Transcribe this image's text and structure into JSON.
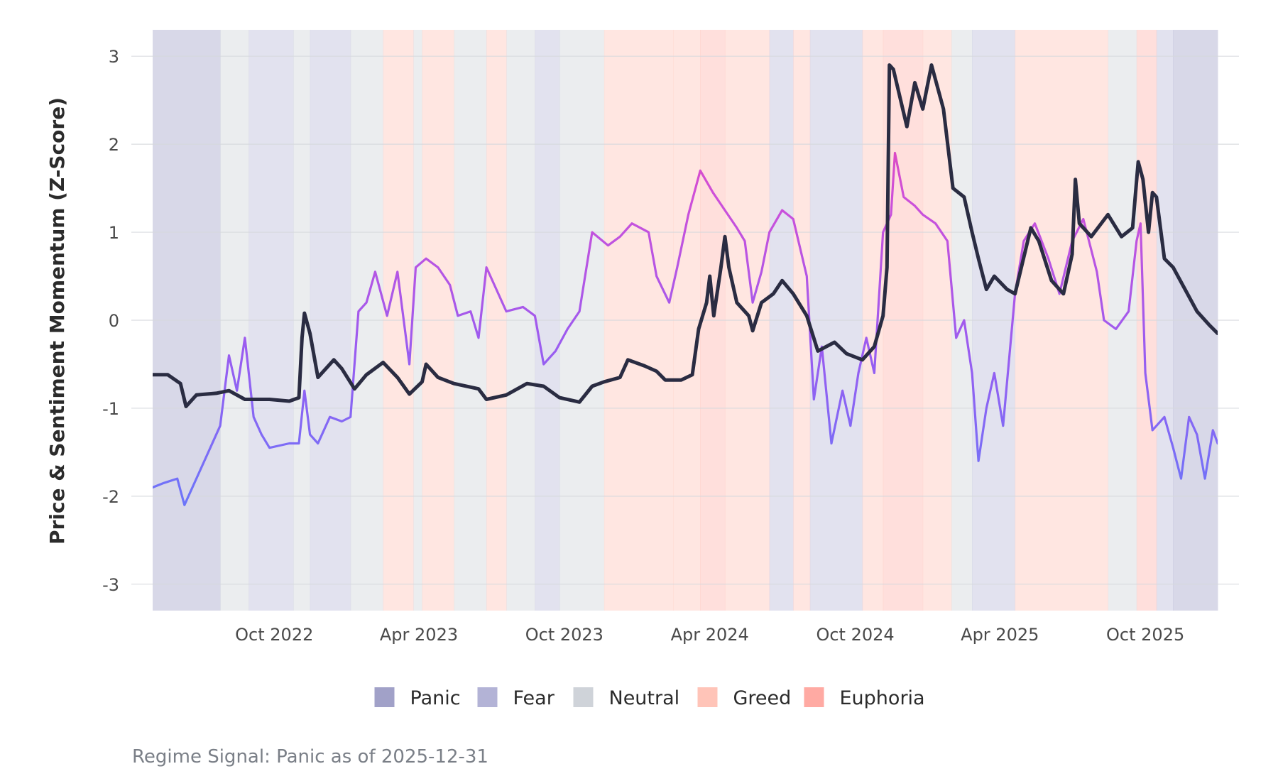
{
  "chart_data": {
    "type": "line",
    "title": "",
    "ylabel": "Price & Sentiment Momentum (Z-Score)",
    "xlabel": "",
    "ylim": [
      -3.3,
      3.3
    ],
    "xlim": [
      "2022-05-01",
      "2025-12-31"
    ],
    "y_ticks": [
      3,
      2,
      1,
      0,
      -1,
      -2,
      -3
    ],
    "y_tick_labels": [
      "3",
      "2",
      "1",
      "0",
      "-1",
      "-2",
      "-3"
    ],
    "x_ticks": [
      "2022-10-01",
      "2023-04-01",
      "2023-10-01",
      "2024-04-01",
      "2024-10-01",
      "2025-04-01",
      "2025-10-01"
    ],
    "x_tick_labels": [
      "Oct 2022",
      "Apr 2023",
      "Oct 2023",
      "Apr 2024",
      "Oct 2024",
      "Apr 2025",
      "Oct 2025"
    ],
    "grid": true,
    "legend_position": "bottom",
    "legend": [
      {
        "label": "Panic",
        "color": "#a1a1c8"
      },
      {
        "label": "Fear",
        "color": "#b3b3d6"
      },
      {
        "label": "Neutral",
        "color": "#cfd3d9"
      },
      {
        "label": "Greed",
        "color": "#ffc4b8"
      },
      {
        "label": "Euphoria",
        "color": "#ffaaa3"
      }
    ],
    "regimes": [
      {
        "start": "2022-05-01",
        "end": "2022-07-25",
        "regime": "Panic"
      },
      {
        "start": "2022-07-25",
        "end": "2022-08-30",
        "regime": "Neutral"
      },
      {
        "start": "2022-08-30",
        "end": "2022-10-25",
        "regime": "Fear"
      },
      {
        "start": "2022-10-25",
        "end": "2022-11-15",
        "regime": "Neutral"
      },
      {
        "start": "2022-11-15",
        "end": "2023-01-05",
        "regime": "Fear"
      },
      {
        "start": "2023-01-05",
        "end": "2023-02-15",
        "regime": "Neutral"
      },
      {
        "start": "2023-02-15",
        "end": "2023-03-25",
        "regime": "Greed"
      },
      {
        "start": "2023-03-25",
        "end": "2023-04-05",
        "regime": "Neutral"
      },
      {
        "start": "2023-04-05",
        "end": "2023-05-15",
        "regime": "Greed"
      },
      {
        "start": "2023-05-15",
        "end": "2023-06-25",
        "regime": "Neutral"
      },
      {
        "start": "2023-06-25",
        "end": "2023-07-20",
        "regime": "Greed"
      },
      {
        "start": "2023-07-20",
        "end": "2023-08-25",
        "regime": "Neutral"
      },
      {
        "start": "2023-08-25",
        "end": "2023-09-25",
        "regime": "Fear"
      },
      {
        "start": "2023-09-25",
        "end": "2023-11-20",
        "regime": "Neutral"
      },
      {
        "start": "2023-11-20",
        "end": "2024-02-15",
        "regime": "Greed"
      },
      {
        "start": "2024-02-15",
        "end": "2024-03-20",
        "regime": "Greed"
      },
      {
        "start": "2024-03-20",
        "end": "2024-04-20",
        "regime": "Euphoria"
      },
      {
        "start": "2024-04-20",
        "end": "2024-06-15",
        "regime": "Greed"
      },
      {
        "start": "2024-06-15",
        "end": "2024-07-15",
        "regime": "Fear"
      },
      {
        "start": "2024-07-15",
        "end": "2024-08-05",
        "regime": "Greed"
      },
      {
        "start": "2024-08-05",
        "end": "2024-10-10",
        "regime": "Fear"
      },
      {
        "start": "2024-10-10",
        "end": "2024-11-05",
        "regime": "Greed"
      },
      {
        "start": "2024-11-05",
        "end": "2024-12-25",
        "regime": "Euphoria"
      },
      {
        "start": "2024-12-25",
        "end": "2025-01-30",
        "regime": "Greed"
      },
      {
        "start": "2025-01-30",
        "end": "2025-02-25",
        "regime": "Neutral"
      },
      {
        "start": "2025-02-25",
        "end": "2025-04-20",
        "regime": "Fear"
      },
      {
        "start": "2025-04-20",
        "end": "2025-08-15",
        "regime": "Greed"
      },
      {
        "start": "2025-08-15",
        "end": "2025-09-20",
        "regime": "Neutral"
      },
      {
        "start": "2025-09-20",
        "end": "2025-10-15",
        "regime": "Euphoria"
      },
      {
        "start": "2025-10-15",
        "end": "2025-11-05",
        "regime": "Fear"
      },
      {
        "start": "2025-11-05",
        "end": "2025-12-31",
        "regime": "Panic"
      }
    ],
    "series": [
      {
        "color": "#2a2c42",
        "points": [
          [
            "2022-05-01",
            -0.62
          ],
          [
            "2022-05-20",
            -0.62
          ],
          [
            "2022-06-05",
            -0.72
          ],
          [
            "2022-06-12",
            -0.98
          ],
          [
            "2022-06-25",
            -0.85
          ],
          [
            "2022-07-20",
            -0.83
          ],
          [
            "2022-08-05",
            -0.8
          ],
          [
            "2022-08-25",
            -0.9
          ],
          [
            "2022-09-25",
            -0.9
          ],
          [
            "2022-10-20",
            -0.92
          ],
          [
            "2022-11-01",
            -0.88
          ],
          [
            "2022-11-05",
            -0.2
          ],
          [
            "2022-11-08",
            0.08
          ],
          [
            "2022-11-15",
            -0.15
          ],
          [
            "2022-11-25",
            -0.65
          ],
          [
            "2022-12-15",
            -0.45
          ],
          [
            "2022-12-25",
            -0.55
          ],
          [
            "2023-01-10",
            -0.78
          ],
          [
            "2023-01-25",
            -0.62
          ],
          [
            "2023-02-15",
            -0.48
          ],
          [
            "2023-03-05",
            -0.65
          ],
          [
            "2023-03-20",
            -0.84
          ],
          [
            "2023-04-05",
            -0.7
          ],
          [
            "2023-04-10",
            -0.5
          ],
          [
            "2023-04-25",
            -0.65
          ],
          [
            "2023-05-15",
            -0.72
          ],
          [
            "2023-06-15",
            -0.78
          ],
          [
            "2023-06-25",
            -0.9
          ],
          [
            "2023-07-20",
            -0.85
          ],
          [
            "2023-08-15",
            -0.72
          ],
          [
            "2023-09-05",
            -0.75
          ],
          [
            "2023-09-25",
            -0.88
          ],
          [
            "2023-10-20",
            -0.93
          ],
          [
            "2023-11-05",
            -0.75
          ],
          [
            "2023-11-20",
            -0.7
          ],
          [
            "2023-12-10",
            -0.65
          ],
          [
            "2023-12-20",
            -0.45
          ],
          [
            "2024-01-10",
            -0.52
          ],
          [
            "2024-01-25",
            -0.58
          ],
          [
            "2024-02-05",
            -0.68
          ],
          [
            "2024-02-25",
            -0.68
          ],
          [
            "2024-03-10",
            -0.62
          ],
          [
            "2024-03-18",
            -0.1
          ],
          [
            "2024-03-28",
            0.2
          ],
          [
            "2024-04-01",
            0.5
          ],
          [
            "2024-04-06",
            0.05
          ],
          [
            "2024-04-15",
            0.6
          ],
          [
            "2024-04-20",
            0.95
          ],
          [
            "2024-04-25",
            0.6
          ],
          [
            "2024-05-05",
            0.2
          ],
          [
            "2024-05-20",
            0.05
          ],
          [
            "2024-05-25",
            -0.12
          ],
          [
            "2024-06-05",
            0.2
          ],
          [
            "2024-06-20",
            0.3
          ],
          [
            "2024-07-01",
            0.45
          ],
          [
            "2024-07-15",
            0.3
          ],
          [
            "2024-08-01",
            0.05
          ],
          [
            "2024-08-15",
            -0.35
          ],
          [
            "2024-09-05",
            -0.25
          ],
          [
            "2024-09-20",
            -0.38
          ],
          [
            "2024-10-10",
            -0.45
          ],
          [
            "2024-10-25",
            -0.3
          ],
          [
            "2024-11-05",
            0.05
          ],
          [
            "2024-11-10",
            0.6
          ],
          [
            "2024-11-13",
            2.9
          ],
          [
            "2024-11-18",
            2.85
          ],
          [
            "2024-12-05",
            2.2
          ],
          [
            "2024-12-15",
            2.7
          ],
          [
            "2024-12-25",
            2.4
          ],
          [
            "2025-01-05",
            2.9
          ],
          [
            "2025-01-20",
            2.4
          ],
          [
            "2025-02-01",
            1.5
          ],
          [
            "2025-02-15",
            1.4
          ],
          [
            "2025-02-25",
            1.0
          ],
          [
            "2025-03-05",
            0.7
          ],
          [
            "2025-03-15",
            0.35
          ],
          [
            "2025-03-25",
            0.5
          ],
          [
            "2025-04-10",
            0.35
          ],
          [
            "2025-04-20",
            0.3
          ],
          [
            "2025-05-10",
            1.05
          ],
          [
            "2025-05-20",
            0.9
          ],
          [
            "2025-06-05",
            0.45
          ],
          [
            "2025-06-20",
            0.3
          ],
          [
            "2025-07-01",
            0.75
          ],
          [
            "2025-07-05",
            1.6
          ],
          [
            "2025-07-10",
            1.1
          ],
          [
            "2025-07-25",
            0.95
          ],
          [
            "2025-08-15",
            1.2
          ],
          [
            "2025-09-01",
            0.95
          ],
          [
            "2025-09-15",
            1.05
          ],
          [
            "2025-09-22",
            1.8
          ],
          [
            "2025-09-28",
            1.6
          ],
          [
            "2025-10-05",
            1.0
          ],
          [
            "2025-10-10",
            1.45
          ],
          [
            "2025-10-15",
            1.4
          ],
          [
            "2025-10-25",
            0.7
          ],
          [
            "2025-11-05",
            0.6
          ],
          [
            "2025-11-20",
            0.35
          ],
          [
            "2025-12-05",
            0.1
          ],
          [
            "2025-12-20",
            -0.05
          ],
          [
            "2025-12-31",
            -0.15
          ]
        ]
      },
      {
        "gradient": true,
        "points": [
          [
            "2022-05-01",
            -1.9
          ],
          [
            "2022-05-15",
            -1.85
          ],
          [
            "2022-06-01",
            -1.8
          ],
          [
            "2022-06-10",
            -2.1
          ],
          [
            "2022-06-25",
            -1.8
          ],
          [
            "2022-07-10",
            -1.5
          ],
          [
            "2022-07-25",
            -1.2
          ],
          [
            "2022-08-05",
            -0.4
          ],
          [
            "2022-08-15",
            -0.8
          ],
          [
            "2022-08-25",
            -0.2
          ],
          [
            "2022-09-05",
            -1.1
          ],
          [
            "2022-09-15",
            -1.3
          ],
          [
            "2022-09-25",
            -1.45
          ],
          [
            "2022-10-20",
            -1.4
          ],
          [
            "2022-11-01",
            -1.4
          ],
          [
            "2022-11-08",
            -0.8
          ],
          [
            "2022-11-15",
            -1.3
          ],
          [
            "2022-11-25",
            -1.4
          ],
          [
            "2022-12-10",
            -1.1
          ],
          [
            "2022-12-25",
            -1.15
          ],
          [
            "2023-01-05",
            -1.1
          ],
          [
            "2023-01-15",
            0.1
          ],
          [
            "2023-01-25",
            0.2
          ],
          [
            "2023-02-05",
            0.55
          ],
          [
            "2023-02-20",
            0.05
          ],
          [
            "2023-03-05",
            0.55
          ],
          [
            "2023-03-20",
            -0.5
          ],
          [
            "2023-03-28",
            0.6
          ],
          [
            "2023-04-10",
            0.7
          ],
          [
            "2023-04-25",
            0.6
          ],
          [
            "2023-05-10",
            0.4
          ],
          [
            "2023-05-20",
            0.05
          ],
          [
            "2023-06-05",
            0.1
          ],
          [
            "2023-06-15",
            -0.2
          ],
          [
            "2023-06-25",
            0.6
          ],
          [
            "2023-07-05",
            0.4
          ],
          [
            "2023-07-20",
            0.1
          ],
          [
            "2023-08-10",
            0.15
          ],
          [
            "2023-08-25",
            0.05
          ],
          [
            "2023-09-05",
            -0.5
          ],
          [
            "2023-09-20",
            -0.35
          ],
          [
            "2023-10-05",
            -0.1
          ],
          [
            "2023-10-20",
            0.1
          ],
          [
            "2023-11-05",
            1.0
          ],
          [
            "2023-11-25",
            0.85
          ],
          [
            "2023-12-10",
            0.95
          ],
          [
            "2023-12-25",
            1.1
          ],
          [
            "2024-01-15",
            1.0
          ],
          [
            "2024-01-25",
            0.5
          ],
          [
            "2024-02-10",
            0.2
          ],
          [
            "2024-02-20",
            0.6
          ],
          [
            "2024-03-05",
            1.2
          ],
          [
            "2024-03-20",
            1.7
          ],
          [
            "2024-04-05",
            1.45
          ],
          [
            "2024-04-20",
            1.25
          ],
          [
            "2024-05-05",
            1.05
          ],
          [
            "2024-05-15",
            0.9
          ],
          [
            "2024-05-25",
            0.2
          ],
          [
            "2024-06-05",
            0.55
          ],
          [
            "2024-06-15",
            1.0
          ],
          [
            "2024-07-01",
            1.25
          ],
          [
            "2024-07-15",
            1.15
          ],
          [
            "2024-08-01",
            0.5
          ],
          [
            "2024-08-10",
            -0.9
          ],
          [
            "2024-08-20",
            -0.3
          ],
          [
            "2024-09-01",
            -1.4
          ],
          [
            "2024-09-15",
            -0.8
          ],
          [
            "2024-09-25",
            -1.2
          ],
          [
            "2024-10-05",
            -0.6
          ],
          [
            "2024-10-15",
            -0.2
          ],
          [
            "2024-10-25",
            -0.6
          ],
          [
            "2024-11-05",
            1.0
          ],
          [
            "2024-11-15",
            1.2
          ],
          [
            "2024-11-20",
            1.9
          ],
          [
            "2024-12-01",
            1.4
          ],
          [
            "2024-12-15",
            1.3
          ],
          [
            "2024-12-25",
            1.2
          ],
          [
            "2025-01-10",
            1.1
          ],
          [
            "2025-01-25",
            0.9
          ],
          [
            "2025-02-05",
            -0.2
          ],
          [
            "2025-02-15",
            0.0
          ],
          [
            "2025-02-25",
            -0.6
          ],
          [
            "2025-03-05",
            -1.6
          ],
          [
            "2025-03-15",
            -1.0
          ],
          [
            "2025-03-25",
            -0.6
          ],
          [
            "2025-04-05",
            -1.2
          ],
          [
            "2025-04-20",
            0.3
          ],
          [
            "2025-05-01",
            0.9
          ],
          [
            "2025-05-15",
            1.1
          ],
          [
            "2025-06-01",
            0.7
          ],
          [
            "2025-06-15",
            0.3
          ],
          [
            "2025-07-01",
            0.9
          ],
          [
            "2025-07-15",
            1.15
          ],
          [
            "2025-08-01",
            0.55
          ],
          [
            "2025-08-10",
            0.0
          ],
          [
            "2025-08-25",
            -0.1
          ],
          [
            "2025-09-10",
            0.1
          ],
          [
            "2025-09-20",
            0.9
          ],
          [
            "2025-09-25",
            1.1
          ],
          [
            "2025-10-01",
            -0.6
          ],
          [
            "2025-10-10",
            -1.25
          ],
          [
            "2025-10-25",
            -1.1
          ],
          [
            "2025-11-05",
            -1.45
          ],
          [
            "2025-11-15",
            -1.8
          ],
          [
            "2025-11-25",
            -1.1
          ],
          [
            "2025-12-05",
            -1.3
          ],
          [
            "2025-12-15",
            -1.8
          ],
          [
            "2025-12-25",
            -1.25
          ],
          [
            "2025-12-31",
            -1.4
          ]
        ]
      }
    ]
  },
  "caption": "Regime Signal: Panic as of 2025-12-31"
}
